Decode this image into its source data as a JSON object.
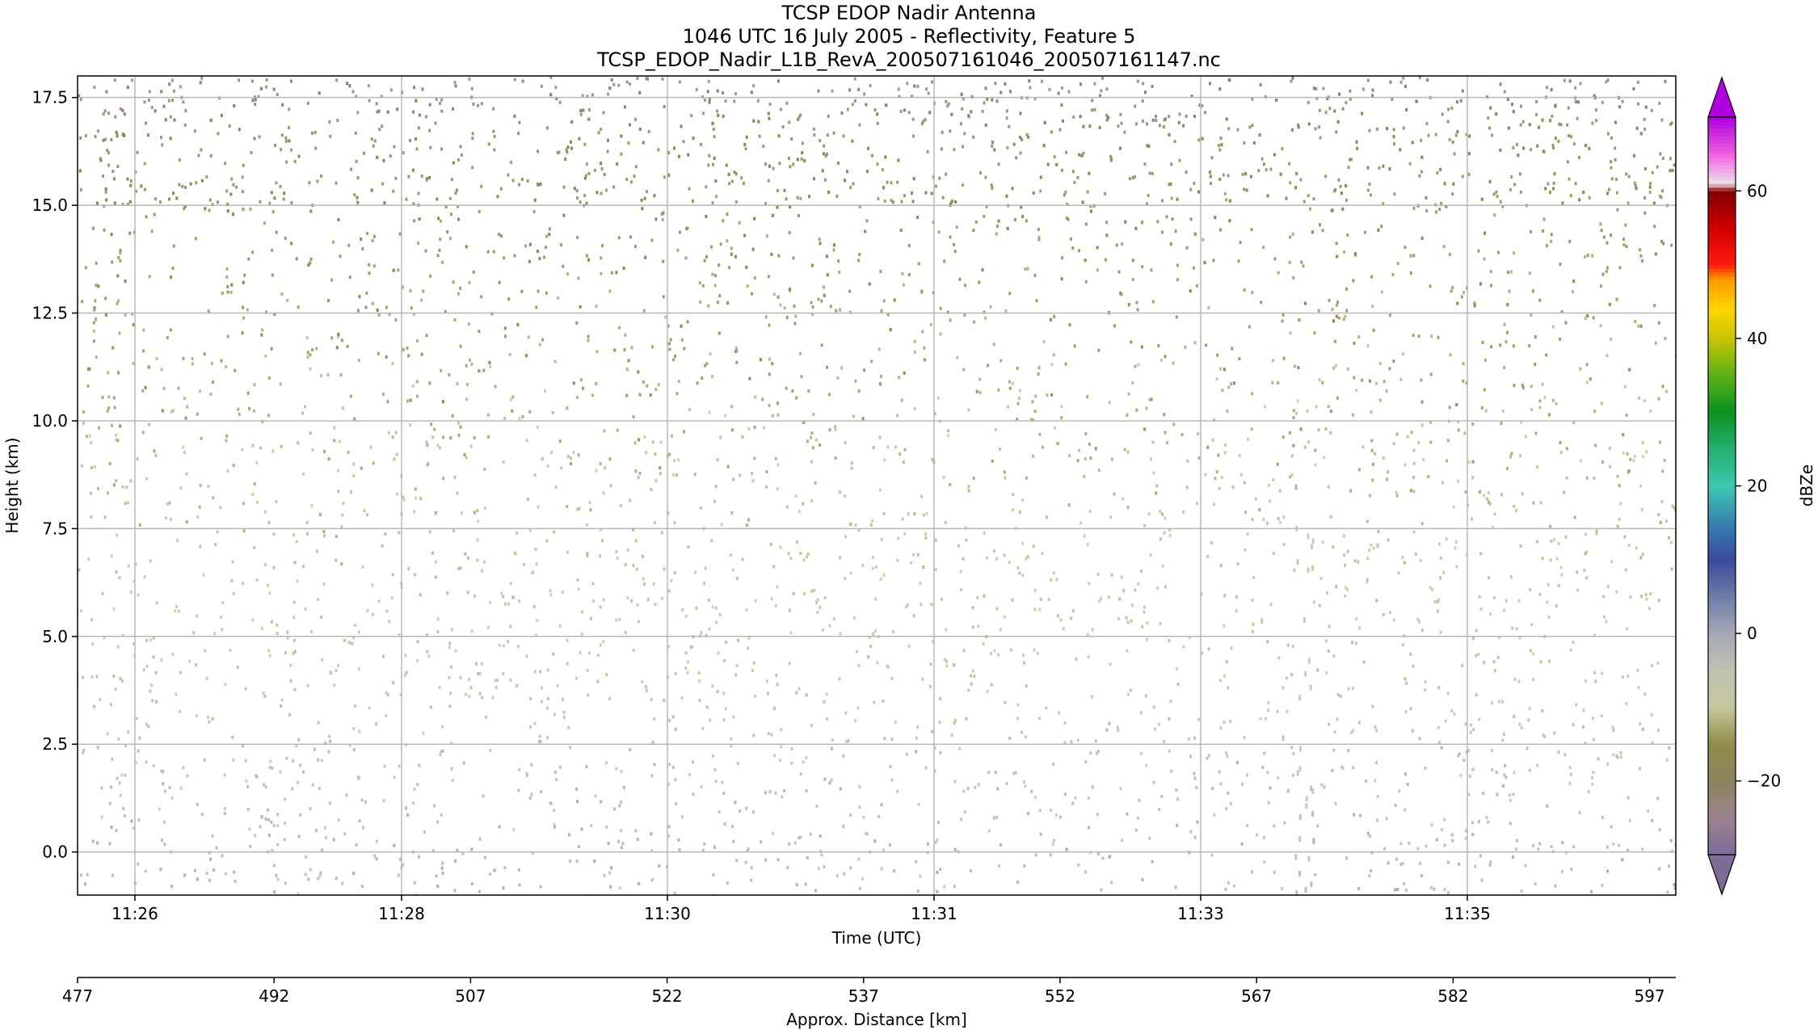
{
  "chart_data": {
    "type": "heatmap",
    "title_lines": [
      "TCSP EDOP Nadir Antenna",
      "1046 UTC 16 July 2005 - Reflectivity, Feature 5",
      "TCSP_EDOP_Nadir_L1B_RevA_200507161046_200507161147.nc"
    ],
    "xlabel": "Time (UTC)",
    "ylabel": "Height (km)",
    "x_tick_labels": [
      "11:26",
      "11:28",
      "11:30",
      "11:31",
      "11:33",
      "11:35"
    ],
    "ylim": [
      -1.0,
      18.0
    ],
    "y_ticks": [
      0.0,
      2.5,
      5.0,
      7.5,
      10.0,
      12.5,
      15.0,
      17.5
    ],
    "y_tick_labels": [
      "0.0",
      "2.5",
      "5.0",
      "7.5",
      "10.0",
      "12.5",
      "15.0",
      "17.5"
    ],
    "grid": true,
    "secondary_x_axis": {
      "label": "Approx. Distance [km]",
      "range": [
        477,
        599
      ],
      "ticks": [
        477,
        492,
        507,
        522,
        537,
        552,
        567,
        582,
        597
      ],
      "tick_labels": [
        "477",
        "492",
        "507",
        "522",
        "537",
        "552",
        "567",
        "582",
        "597"
      ]
    },
    "colorbar": {
      "label": "dBZe",
      "range": [
        -30,
        70
      ],
      "ticks": [
        -20,
        0,
        20,
        40,
        60
      ],
      "tick_labels": [
        "−20",
        "0",
        "20",
        "40",
        "60"
      ],
      "extend": "both",
      "colors": [
        {
          "v": -30,
          "c": "#7d6c96"
        },
        {
          "v": -25,
          "c": "#9a8290"
        },
        {
          "v": -20,
          "c": "#8b845c"
        },
        {
          "v": -15,
          "c": "#8f8c4a"
        },
        {
          "v": -10,
          "c": "#c5c89e"
        },
        {
          "v": -5,
          "c": "#c0c2b0"
        },
        {
          "v": 0,
          "c": "#a6a9b6"
        },
        {
          "v": 5,
          "c": "#6d7ca8"
        },
        {
          "v": 10,
          "c": "#3a4a9c"
        },
        {
          "v": 15,
          "c": "#3680b0"
        },
        {
          "v": 20,
          "c": "#3cc8b0"
        },
        {
          "v": 25,
          "c": "#26b070"
        },
        {
          "v": 30,
          "c": "#0a9020"
        },
        {
          "v": 35,
          "c": "#5cb018"
        },
        {
          "v": 40,
          "c": "#c8c400"
        },
        {
          "v": 44,
          "c": "#ffd500"
        },
        {
          "v": 48,
          "c": "#ff9a00"
        },
        {
          "v": 50,
          "c": "#ff1a10"
        },
        {
          "v": 55,
          "c": "#d00000"
        },
        {
          "v": 60,
          "c": "#800000"
        },
        {
          "v": 61,
          "c": "#f0e0ec"
        },
        {
          "v": 65,
          "c": "#f060e0"
        },
        {
          "v": 70,
          "c": "#b000e0"
        }
      ],
      "under_color": "#7d6c96",
      "over_color": "#b000e0"
    }
  }
}
